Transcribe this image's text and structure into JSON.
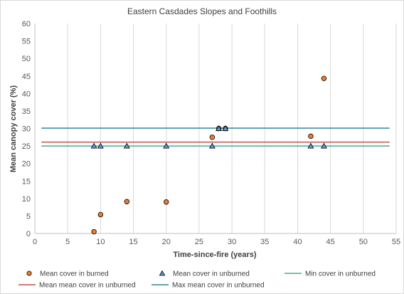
{
  "chart_data": {
    "type": "scatter",
    "title": "Eastern Casdades Slopes and Foothills",
    "xlabel": "Time-since-fire (years)",
    "ylabel": "Mean canopy cover (%)",
    "xlim": [
      0,
      55
    ],
    "ylim": [
      0,
      60
    ],
    "xticks": [
      0,
      5,
      10,
      15,
      20,
      25,
      30,
      35,
      40,
      45,
      50,
      55
    ],
    "yticks": [
      0,
      5,
      10,
      15,
      20,
      25,
      30,
      35,
      40,
      45,
      50,
      55,
      60
    ],
    "grid": "vertical",
    "legend_position": "bottom",
    "series": [
      {
        "name": "Mean cover in burned",
        "kind": "marker",
        "marker": "circle",
        "color": "#ED7D31",
        "points": [
          [
            9,
            0.5
          ],
          [
            10,
            5.4
          ],
          [
            14,
            9.1
          ],
          [
            20,
            9.0
          ],
          [
            27,
            27.5
          ],
          [
            28,
            30.0
          ],
          [
            29,
            30.0
          ],
          [
            42,
            27.8
          ],
          [
            44,
            44.3
          ]
        ]
      },
      {
        "name": "Mean cover in unburned",
        "kind": "marker",
        "marker": "triangle",
        "color": "#5B9BD5",
        "points": [
          [
            9,
            25
          ],
          [
            10,
            25
          ],
          [
            14,
            25
          ],
          [
            20,
            25
          ],
          [
            27,
            25
          ],
          [
            28,
            30
          ],
          [
            29,
            30
          ],
          [
            42,
            25
          ],
          [
            44,
            25
          ]
        ]
      },
      {
        "name": "Min cover in unburned",
        "kind": "hline",
        "color": "#4BAA8C",
        "y": 25,
        "x_range": [
          1,
          54
        ]
      },
      {
        "name": "Mean mean cover in unburned",
        "kind": "hline",
        "color": "#C0504D",
        "y": 26.1,
        "x_range": [
          1,
          54
        ]
      },
      {
        "name": "Max mean cover in unburned",
        "kind": "hline",
        "color": "#31859C",
        "y": 30.1,
        "x_range": [
          1,
          54
        ]
      }
    ]
  }
}
